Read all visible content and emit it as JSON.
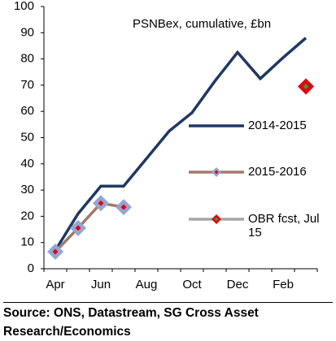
{
  "chart_data": {
    "type": "line",
    "title": "PSNBex, cumulative, £bn",
    "categories": [
      "Apr",
      null,
      "Jun",
      null,
      "Aug",
      null,
      "Oct",
      null,
      "Dec",
      null,
      "Feb",
      null
    ],
    "series": [
      {
        "name": "2014-2015",
        "color": "#1f3864",
        "marker": "none",
        "values": [
          7,
          21,
          31.5,
          31.5,
          42,
          52.5,
          59.5,
          71.5,
          82.5,
          72.5,
          80.5,
          88
        ]
      },
      {
        "name": "2015-2016",
        "color": "#a07a6c",
        "marker": "diamond",
        "marker_color": "#95a6d2",
        "center_color": "#e3000f",
        "values": [
          6.5,
          15.5,
          25,
          23.5,
          null,
          null,
          null,
          null,
          null,
          null,
          null,
          null
        ]
      },
      {
        "name": "OBR fcst, Jul 15",
        "color": "#a6a6a6",
        "marker": "diamond",
        "marker_color": "#e3000f",
        "center_color": "#2e9e3c",
        "values": [
          null,
          null,
          null,
          null,
          null,
          null,
          null,
          null,
          null,
          null,
          null,
          69.5
        ]
      }
    ],
    "ylim": [
      0,
      100
    ],
    "yticks": [
      0,
      10,
      20,
      30,
      40,
      50,
      60,
      70,
      80,
      90,
      100
    ],
    "grid": false,
    "legend": "right"
  },
  "source": "Source: ONS, Datastream, SG Cross Asset Research/Economics"
}
